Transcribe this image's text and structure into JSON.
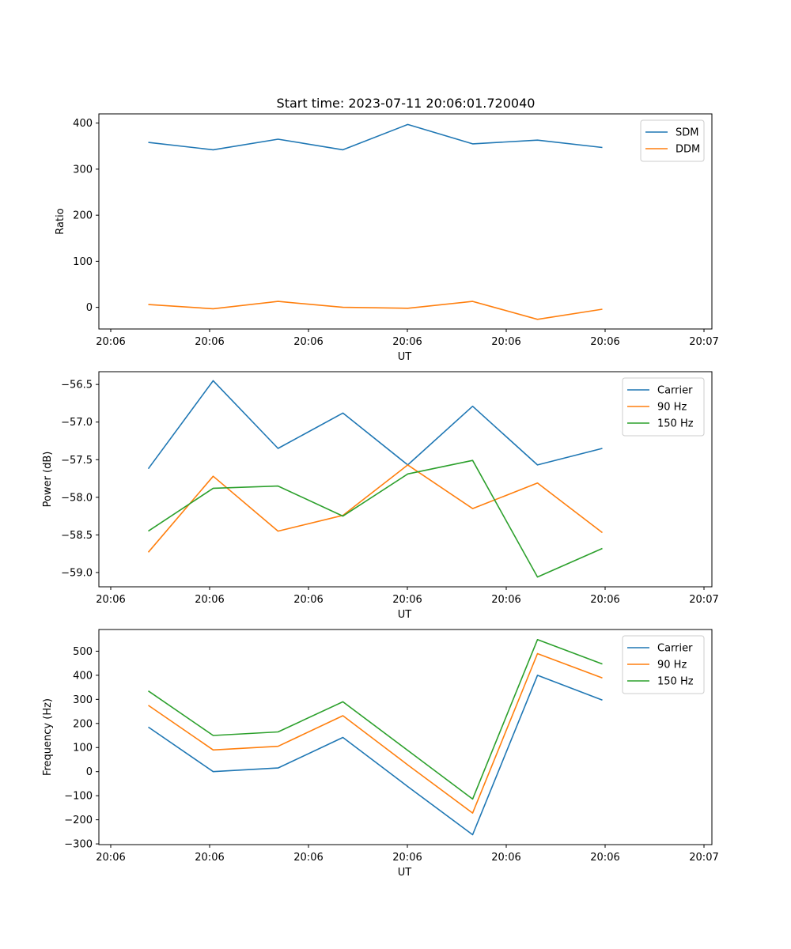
{
  "figure": {
    "title": "Start time: 2023-07-11 20:06:01.720040"
  },
  "colors": {
    "blue": "#1f77b4",
    "orange": "#ff7f0e",
    "green": "#2ca02c"
  },
  "chart_data": [
    {
      "type": "line",
      "title": "Start time: 2023-07-11 20:06:01.720040",
      "xlabel": "UT",
      "ylabel": "Ratio",
      "x": [
        0.5,
        1.156,
        1.812,
        2.468,
        3.124,
        3.78,
        4.436,
        5.092
      ],
      "xlim": [
        0.0,
        6.2
      ],
      "xticks": [
        0.12,
        1.12,
        2.12,
        3.12,
        4.12,
        5.12,
        6.12
      ],
      "xtick_labels": [
        "20:06",
        "20:06",
        "20:06",
        "20:06",
        "20:06",
        "20:06",
        "20:07"
      ],
      "ylim": [
        -47,
        420
      ],
      "yticks": [
        0,
        100,
        200,
        300,
        400
      ],
      "ytick_labels": [
        "0",
        "100",
        "200",
        "300",
        "400"
      ],
      "legend_position": "top-right",
      "grid": false,
      "series": [
        {
          "name": "SDM",
          "color": "#1f77b4",
          "values": [
            358,
            342,
            365,
            342,
            397,
            355,
            363,
            347
          ]
        },
        {
          "name": "DDM",
          "color": "#ff7f0e",
          "values": [
            6,
            -3,
            13,
            0,
            -2,
            13,
            -26,
            -4
          ]
        }
      ]
    },
    {
      "type": "line",
      "title": "",
      "xlabel": "UT",
      "ylabel": "Power (dB)",
      "x": [
        0.5,
        1.156,
        1.812,
        2.468,
        3.124,
        3.78,
        4.436,
        5.092
      ],
      "xlim": [
        0.0,
        6.2
      ],
      "xticks": [
        0.12,
        1.12,
        2.12,
        3.12,
        4.12,
        5.12,
        6.12
      ],
      "xtick_labels": [
        "20:06",
        "20:06",
        "20:06",
        "20:06",
        "20:06",
        "20:06",
        "20:07"
      ],
      "ylim": [
        -59.19,
        -56.33
      ],
      "yticks": [
        -56.5,
        -57.0,
        -57.5,
        -58.0,
        -58.5,
        -59.0
      ],
      "ytick_labels": [
        "−56.5",
        "−57.0",
        "−57.5",
        "−58.0",
        "−58.5",
        "−59.0"
      ],
      "legend_position": "top-right",
      "grid": false,
      "series": [
        {
          "name": "Carrier",
          "color": "#1f77b4",
          "values": [
            -57.62,
            -56.45,
            -57.35,
            -56.88,
            -57.57,
            -56.79,
            -57.57,
            -57.35
          ]
        },
        {
          "name": "90 Hz",
          "color": "#ff7f0e",
          "values": [
            -58.73,
            -57.72,
            -58.45,
            -58.24,
            -57.57,
            -58.15,
            -57.81,
            -58.47
          ]
        },
        {
          "name": "150 Hz",
          "color": "#2ca02c",
          "values": [
            -58.45,
            -57.88,
            -57.85,
            -58.25,
            -57.69,
            -57.51,
            -59.06,
            -58.68
          ]
        }
      ]
    },
    {
      "type": "line",
      "title": "",
      "xlabel": "UT",
      "ylabel": "Frequency (Hz)",
      "x": [
        0.5,
        1.156,
        1.812,
        2.468,
        3.124,
        3.78,
        4.436,
        5.092
      ],
      "xlim": [
        0.0,
        6.2
      ],
      "xticks": [
        0.12,
        1.12,
        2.12,
        3.12,
        4.12,
        5.12,
        6.12
      ],
      "xtick_labels": [
        "20:06",
        "20:06",
        "20:06",
        "20:06",
        "20:06",
        "20:06",
        "20:07"
      ],
      "ylim": [
        -303,
        590
      ],
      "yticks": [
        500,
        400,
        300,
        200,
        100,
        0,
        -100,
        -200,
        -300
      ],
      "ytick_labels": [
        "500",
        "400",
        "300",
        "200",
        "100",
        "0",
        "−100",
        "−200",
        "−300"
      ],
      "legend_position": "top-right",
      "grid": false,
      "series": [
        {
          "name": "Carrier",
          "color": "#1f77b4",
          "values": [
            185,
            0,
            15,
            142,
            -62,
            -262,
            400,
            297
          ]
        },
        {
          "name": "90 Hz",
          "color": "#ff7f0e",
          "values": [
            275,
            90,
            105,
            232,
            28,
            -172,
            490,
            389
          ]
        },
        {
          "name": "150 Hz",
          "color": "#2ca02c",
          "values": [
            335,
            150,
            165,
            290,
            88,
            -114,
            548,
            447
          ]
        }
      ]
    }
  ]
}
